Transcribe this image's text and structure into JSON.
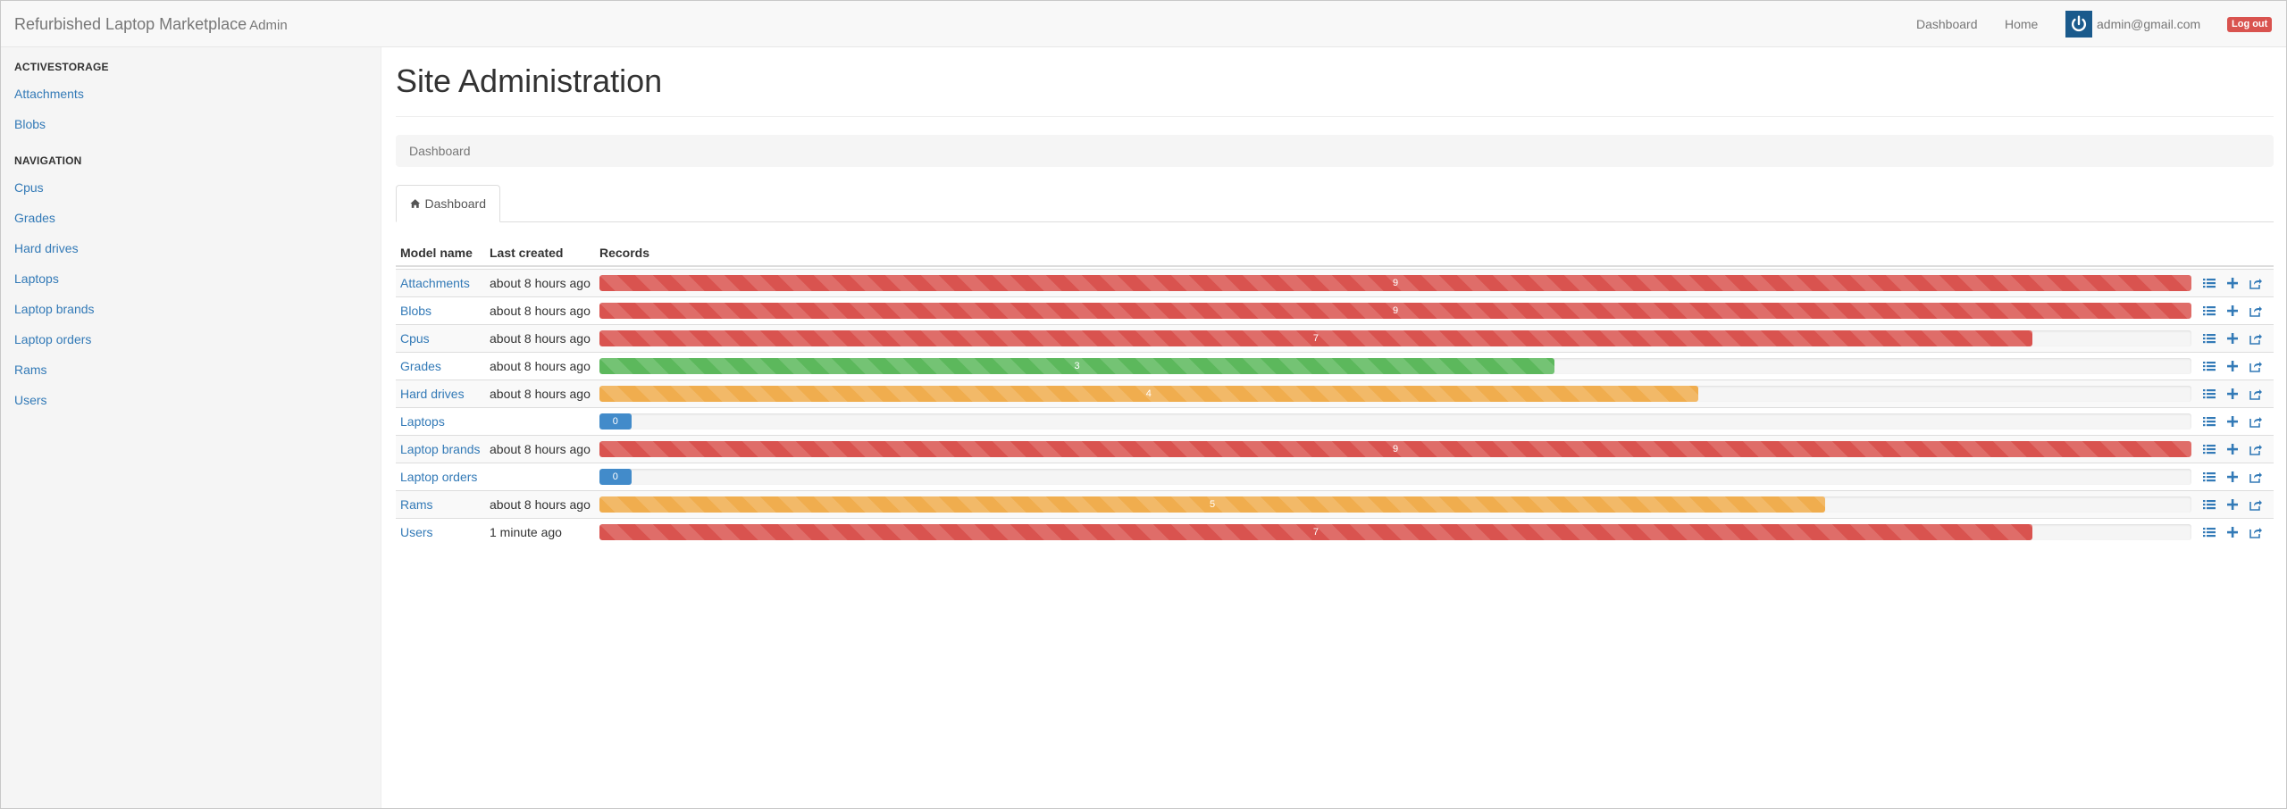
{
  "navbar": {
    "brand": "Refurbished Laptop Marketplace",
    "brand_sub": "Admin",
    "links": [
      "Dashboard",
      "Home"
    ],
    "user_email": "admin@gmail.com",
    "logout_label": "Log out"
  },
  "sidebar": {
    "sections": [
      {
        "header": "ACTIVESTORAGE",
        "items": [
          "Attachments",
          "Blobs"
        ]
      },
      {
        "header": "NAVIGATION",
        "items": [
          "Cpus",
          "Grades",
          "Hard drives",
          "Laptops",
          "Laptop brands",
          "Laptop orders",
          "Rams",
          "Users"
        ]
      }
    ]
  },
  "main": {
    "title": "Site Administration",
    "breadcrumb": "Dashboard",
    "tab_label": "Dashboard",
    "table": {
      "headers": [
        "Model name",
        "Last created",
        "Records"
      ],
      "rows": [
        {
          "name": "Attachments",
          "created": "about 8 hours ago",
          "count": "9",
          "fill": 1.0,
          "status": "danger"
        },
        {
          "name": "Blobs",
          "created": "about 8 hours ago",
          "count": "9",
          "fill": 1.0,
          "status": "danger"
        },
        {
          "name": "Cpus",
          "created": "about 8 hours ago",
          "count": "7",
          "fill": 0.9,
          "status": "danger"
        },
        {
          "name": "Grades",
          "created": "about 8 hours ago",
          "count": "3",
          "fill": 0.6,
          "status": "success"
        },
        {
          "name": "Hard drives",
          "created": "about 8 hours ago",
          "count": "4",
          "fill": 0.69,
          "status": "warning"
        },
        {
          "name": "Laptops",
          "created": "",
          "count": "0",
          "fill": 0.02,
          "status": "info"
        },
        {
          "name": "Laptop brands",
          "created": "about 8 hours ago",
          "count": "9",
          "fill": 1.0,
          "status": "danger"
        },
        {
          "name": "Laptop orders",
          "created": "",
          "count": "0",
          "fill": 0.02,
          "status": "info"
        },
        {
          "name": "Rams",
          "created": "about 8 hours ago",
          "count": "5",
          "fill": 0.77,
          "status": "warning"
        },
        {
          "name": "Users",
          "created": "1 minute ago",
          "count": "7",
          "fill": 0.9,
          "status": "danger"
        }
      ],
      "action_icons": [
        "list-icon",
        "plus-icon",
        "share-icon"
      ]
    }
  }
}
